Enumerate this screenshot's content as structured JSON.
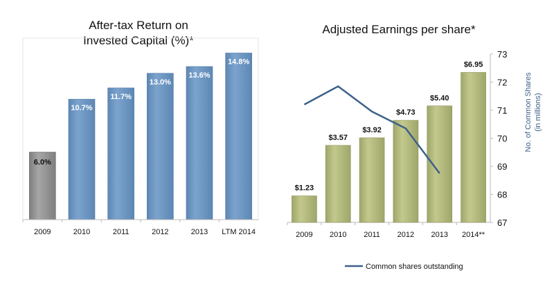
{
  "colors": {
    "blue_bar": "#7ba3cd",
    "blue_bar_dark": "#5d87b4",
    "gray_bar": "#a6a6a6",
    "gray_bar_dark": "#7f7f7f",
    "olive_bar": "#c3c98c",
    "olive_bar_dark": "#9fa66b",
    "line": "#3c6089",
    "axis": "#b8b8b8"
  },
  "chart_data": [
    {
      "type": "bar",
      "title_lines": [
        "After-tax Return on",
        "Invested Capital (%)*"
      ],
      "categories": [
        "2009",
        "2010",
        "2011",
        "2012",
        "2013",
        "LTM 2014"
      ],
      "values": [
        6.0,
        10.7,
        11.7,
        13.0,
        13.6,
        14.8
      ],
      "data_labels": [
        "6.0%",
        "10.7%",
        "11.7%",
        "13.0%",
        "13.6%",
        "14.8%"
      ],
      "ylim": [
        0,
        16
      ],
      "bar_colors": [
        "gray",
        "blue",
        "blue",
        "blue",
        "blue",
        "blue"
      ],
      "xlabel": "",
      "ylabel": "",
      "grid": false
    },
    {
      "type": "bar",
      "title": "Adjusted Earnings per share*",
      "categories": [
        "2009",
        "2010",
        "2011",
        "2012",
        "2013",
        "2014**"
      ],
      "values": [
        1.23,
        3.57,
        3.92,
        4.73,
        5.4,
        6.95
      ],
      "data_labels": [
        "$1.23",
        "$3.57",
        "$3.92",
        "$4.73",
        "$5.40",
        "$6.95"
      ],
      "ylim": [
        0,
        7.8
      ],
      "line_series": {
        "name": "Common shares outstanding",
        "axis": "right",
        "values": [
          71.2,
          71.85,
          70.95,
          70.35,
          68.75,
          null
        ]
      },
      "right_axis": {
        "label_lines": [
          "No. of Common Shares",
          "(in millions)"
        ],
        "ylim": [
          67,
          73
        ],
        "ticks": [
          "67",
          "68",
          "69",
          "70",
          "71",
          "72",
          "73"
        ]
      },
      "legend": {
        "position": "bottom-center",
        "entries": [
          "Common shares outstanding"
        ]
      },
      "grid": false
    }
  ]
}
